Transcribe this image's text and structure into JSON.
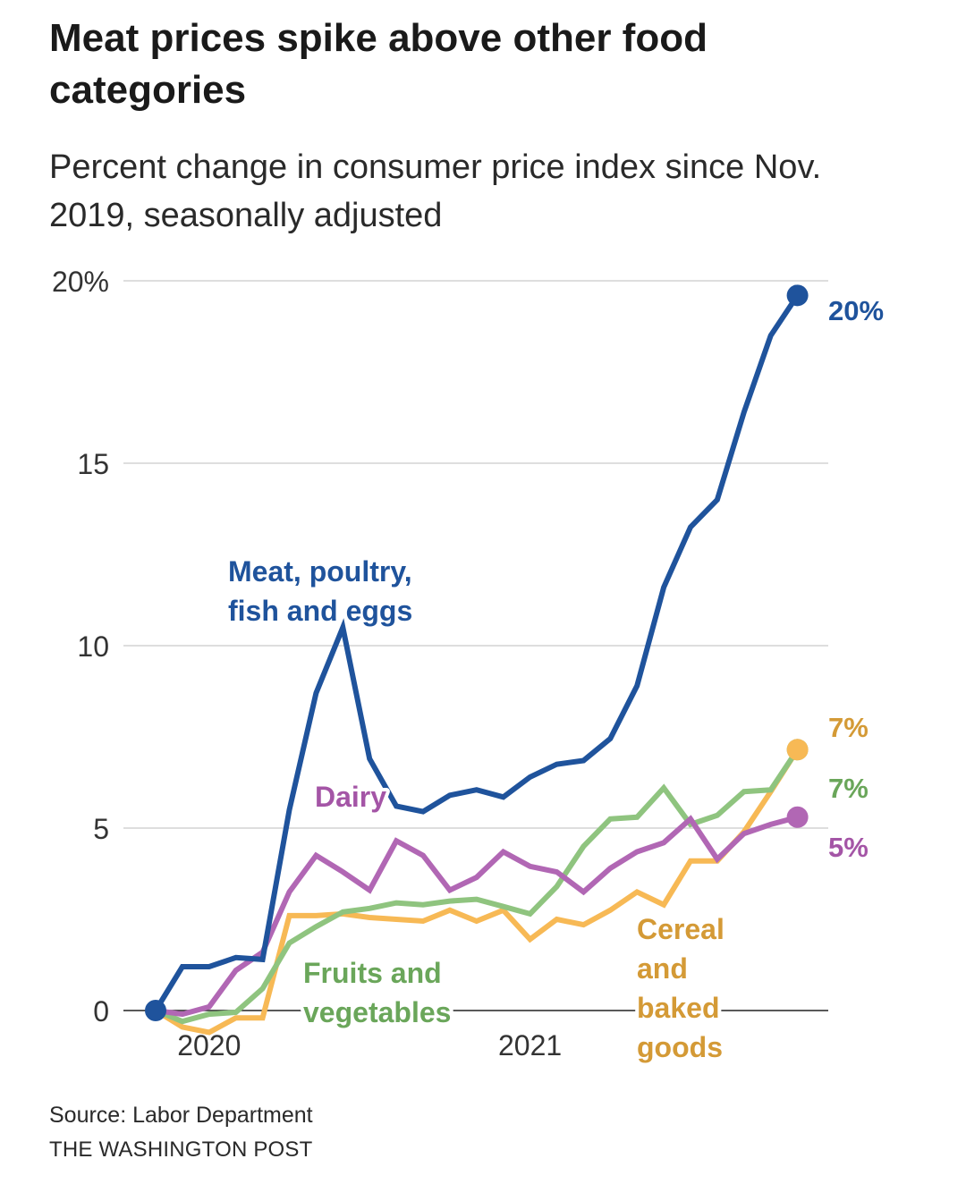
{
  "title": "Meat prices spike above other food categories",
  "subtitle": "Percent change in consumer price index since Nov. 2019, seasonally adjusted",
  "source": "Source: Labor Department",
  "publisher": "THE WASHINGTON POST",
  "chart_data": {
    "type": "line",
    "title": "Meat prices spike above other food categories",
    "subtitle": "Percent change in consumer price index since Nov. 2019, seasonally adjusted",
    "xlabel": "",
    "ylabel": "",
    "x_start": "Nov. 2019",
    "x_count": 25,
    "x": [
      "Nov 2019",
      "Dec 2019",
      "Jan 2020",
      "Feb 2020",
      "Mar 2020",
      "Apr 2020",
      "May 2020",
      "Jun 2020",
      "Jul 2020",
      "Aug 2020",
      "Sep 2020",
      "Oct 2020",
      "Nov 2020",
      "Dec 2020",
      "Jan 2021",
      "Feb 2021",
      "Mar 2021",
      "Apr 2021",
      "May 2021",
      "Jun 2021",
      "Jul 2021",
      "Aug 2021",
      "Sep 2021",
      "Oct 2021",
      "Nov 2021"
    ],
    "ylim": [
      0,
      20
    ],
    "yticks": [
      0,
      5,
      10,
      15,
      20
    ],
    "ytick_labels": [
      "0",
      "5",
      "10",
      "15",
      "20%"
    ],
    "xticks": [
      {
        "index": 2,
        "label": "2020"
      },
      {
        "index": 14,
        "label": "2021"
      }
    ],
    "grid": true,
    "series": [
      {
        "name": "Meat, poultry, fish and eggs",
        "label_lines": [
          "Meat, poultry,",
          "fish and eggs"
        ],
        "color": "#1f539c",
        "end_label": "20%",
        "values": [
          0,
          1.2,
          1.2,
          1.45,
          1.4,
          5.5,
          8.7,
          10.5,
          6.9,
          5.6,
          5.45,
          5.9,
          6.05,
          5.85,
          6.4,
          6.75,
          6.85,
          7.45,
          8.9,
          11.6,
          13.25,
          14.0,
          16.4,
          18.5,
          19.6
        ]
      },
      {
        "name": "Fruits and vegetables",
        "label_lines": [
          "Fruits and",
          "vegetables"
        ],
        "color": "#8fc47f",
        "label_color": "#6aa65a",
        "end_label": "7%",
        "values": [
          0,
          -0.3,
          -0.1,
          -0.05,
          0.6,
          1.85,
          2.3,
          2.7,
          2.8,
          2.95,
          2.9,
          3.0,
          3.05,
          2.85,
          2.65,
          3.4,
          4.5,
          5.25,
          5.3,
          6.1,
          5.1,
          5.35,
          6.0,
          6.05,
          7.15
        ]
      },
      {
        "name": "Cereal and baked goods",
        "label_lines": [
          "Cereal",
          "and",
          "baked",
          "goods"
        ],
        "color": "#f7b955",
        "label_color": "#d49a36",
        "end_label": "7%",
        "values": [
          0,
          -0.45,
          -0.6,
          -0.2,
          -0.2,
          2.6,
          2.6,
          2.65,
          2.55,
          2.5,
          2.45,
          2.75,
          2.45,
          2.75,
          1.95,
          2.5,
          2.35,
          2.75,
          3.25,
          2.9,
          4.1,
          4.1,
          4.9,
          6.0,
          7.15
        ]
      },
      {
        "name": "Dairy",
        "label_lines": [
          "Dairy"
        ],
        "color": "#b167b4",
        "label_color": "#a455a6",
        "end_label": "5%",
        "values": [
          0,
          -0.1,
          0.1,
          1.1,
          1.6,
          3.25,
          4.25,
          3.8,
          3.3,
          4.65,
          4.25,
          3.3,
          3.65,
          4.35,
          3.95,
          3.8,
          3.25,
          3.9,
          4.35,
          4.6,
          5.25,
          4.15,
          4.85,
          5.1,
          5.3
        ]
      }
    ]
  }
}
